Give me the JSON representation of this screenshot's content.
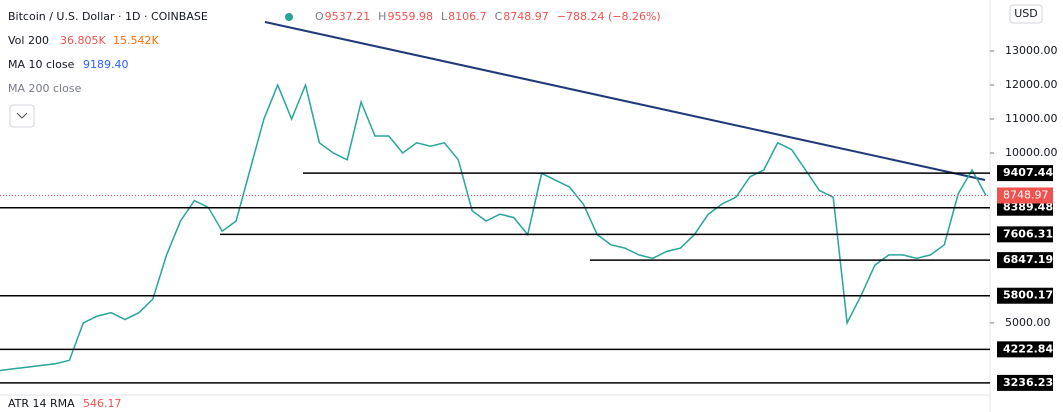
{
  "header": {
    "title": "Bitcoin / U.S. Dollar · 1D · COINBASE",
    "ohlc": [
      {
        "label": "O",
        "value": 9537.21
      },
      {
        "label": "H",
        "value": 9559.98
      },
      {
        "label": "L",
        "value": 8106.7
      },
      {
        "label": "C",
        "value": 8748.97
      }
    ],
    "change": "−788.24 (−8.26%)"
  },
  "indicators": {
    "vol_label": "Vol 200",
    "vol_a": "36.805K",
    "vol_b": "15.542K",
    "ma10_label": "MA 10 close",
    "ma10_value": "9189.40",
    "ma200_label": "MA 200 close",
    "atr_label": "ATR 14 RMA",
    "atr_value": "546.17"
  },
  "currency": "USD",
  "chart_data": {
    "type": "line",
    "color": "#26a69a",
    "values": [
      3600,
      3650,
      3700,
      3750,
      3800,
      3900,
      5000,
      5200,
      5300,
      5100,
      5300,
      5700,
      7000,
      8000,
      8600,
      8400,
      7700,
      8000,
      9500,
      11000,
      12000,
      11000,
      12000,
      10300,
      10000,
      9800,
      11500,
      10500,
      10500,
      10000,
      10300,
      10200,
      10300,
      9800,
      8300,
      8000,
      8200,
      8100,
      7600,
      9400,
      9200,
      9000,
      8500,
      7600,
      7300,
      7200,
      7000,
      6900,
      7100,
      7200,
      7600,
      8200,
      8500,
      8700,
      9300,
      9500,
      10300,
      10100,
      9500,
      8900,
      8700,
      5000,
      5800,
      6700,
      7000,
      7000,
      6900,
      7000,
      7300,
      8800,
      9500,
      8748.97
    ],
    "ylim": [
      2880,
      14500
    ],
    "yticks": [
      {
        "value": 13000,
        "label": "13000.00"
      },
      {
        "value": 12000,
        "label": "12000.00"
      },
      {
        "value": 11000,
        "label": "11000.00"
      },
      {
        "value": 10000,
        "label": "10000.00"
      },
      {
        "value": 5000,
        "label": "5000.00"
      }
    ],
    "levels": [
      9407.44,
      8389.48,
      7606.31,
      6847.19,
      5800.17,
      4222.84,
      3236.23
    ],
    "last_price": 8748.97,
    "last_color": "#ef5350"
  }
}
